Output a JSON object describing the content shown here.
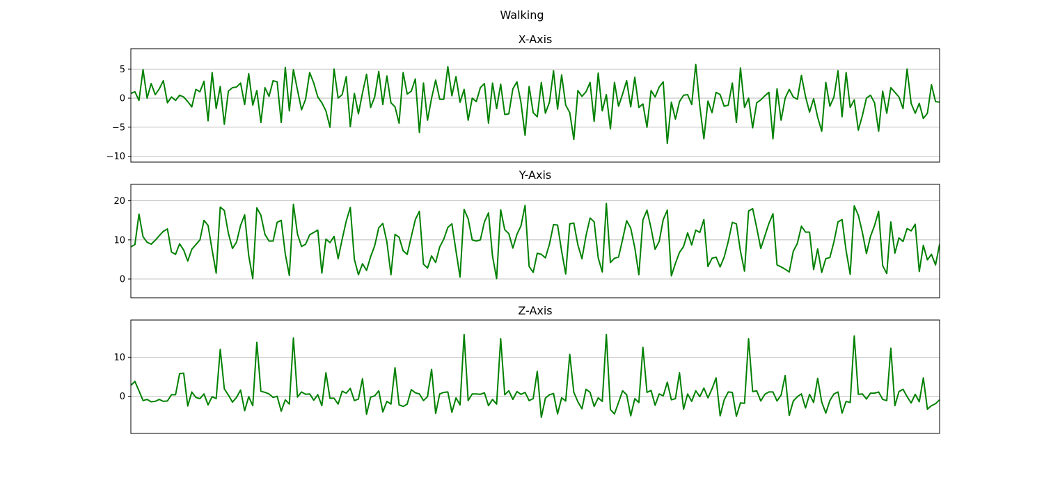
{
  "figure": {
    "title": "Walking"
  },
  "colors": {
    "line": "#008000",
    "grid": "#b0b0b0",
    "frame": "#000000"
  },
  "chart_data": [
    {
      "type": "line",
      "title": "X-Axis",
      "xlabel": "",
      "ylabel": "",
      "grid": "horizontal",
      "x_range": [
        0,
        199
      ],
      "ylim": [
        -11,
        8.5
      ],
      "yticks": [
        -10,
        -5,
        0,
        5
      ],
      "ytick_labels": [
        "−10",
        "−5",
        "0",
        "5"
      ],
      "series": [
        {
          "values": [
            0.8,
            1.1,
            -0.4,
            4.9,
            0.0,
            2.5,
            0.6,
            1.6,
            3.0,
            -0.8,
            0.2,
            -0.4,
            0.5,
            0.2,
            -0.6,
            -1.5,
            1.5,
            1.1,
            2.9,
            -3.9,
            4.4,
            -1.8,
            2.0,
            -4.5,
            1.2,
            1.8,
            1.9,
            2.6,
            -1.1,
            4.2,
            -1.2,
            1.3,
            -4.2,
            1.8,
            0.3,
            3.0,
            2.8,
            -4.2,
            5.3,
            -2.2,
            4.9,
            1.4,
            -2.0,
            -0.2,
            4.4,
            2.6,
            0.2,
            -0.8,
            -2.2,
            -5.0,
            5.0,
            0.0,
            0.6,
            3.7,
            -4.9,
            0.8,
            -2.7,
            0.9,
            4.1,
            -1.6,
            0.2,
            4.6,
            -1.1,
            3.8,
            -0.8,
            -1.5,
            -4.3,
            4.4,
            0.7,
            1.2,
            3.3,
            -5.9,
            2.6,
            -3.8,
            0.0,
            3.1,
            -0.2,
            -0.2,
            5.4,
            0.4,
            3.7,
            -0.7,
            1.5,
            -3.8,
            0.0,
            -0.6,
            1.8,
            2.5,
            -4.3,
            2.6,
            -1.8,
            2.4,
            -2.8,
            -2.7,
            1.6,
            2.8,
            -0.8,
            -6.4,
            2.0,
            -2.5,
            -3.2,
            2.7,
            -2.6,
            -0.7,
            4.7,
            -1.9,
            4.0,
            -1.2,
            -2.5,
            -7.1,
            1.3,
            0.3,
            1.1,
            2.7,
            -4.0,
            4.3,
            -2.2,
            0.6,
            -5.3,
            2.7,
            -1.4,
            0.7,
            3.0,
            -1.5,
            3.6,
            -1.6,
            -1.0,
            -5.0,
            1.3,
            0.2,
            1.9,
            2.8,
            -7.8,
            -0.7,
            -3.6,
            -0.6,
            0.5,
            0.6,
            -1.1,
            5.8,
            -1.4,
            -7.0,
            -0.5,
            -2.5,
            1.0,
            0.6,
            -1.4,
            -1.2,
            2.6,
            -4.2,
            5.2,
            -1.6,
            0.0,
            -5.1,
            -0.8,
            -0.3,
            0.4,
            1.0,
            -7.0,
            1.6,
            -3.8,
            0.0,
            1.5,
            0.2,
            -0.2,
            3.9,
            0.3,
            -2.4,
            -0.1,
            -3.3,
            -5.7,
            2.7,
            -1.4,
            0.2,
            4.7,
            -3.2,
            4.4,
            -1.6,
            -0.3,
            -5.5,
            -3.0,
            0.0,
            0.5,
            -0.8,
            -5.7,
            1.2,
            -2.6,
            1.8,
            1.0,
            0.2,
            -1.8,
            5.0,
            -0.9,
            -2.6,
            -0.9,
            -3.5,
            -2.6,
            2.3,
            -0.6,
            -0.7
          ]
        }
      ]
    },
    {
      "type": "line",
      "title": "Y-Axis",
      "xlabel": "",
      "ylabel": "",
      "grid": "horizontal",
      "x_range": [
        0,
        199
      ],
      "ylim": [
        -4.8,
        24.2
      ],
      "yticks": [
        0,
        10,
        20
      ],
      "ytick_labels": [
        "0",
        "10",
        "20"
      ],
      "series": [
        {
          "values": [
            8.2,
            8.8,
            16.6,
            10.8,
            9.4,
            8.9,
            9.9,
            11.1,
            12.2,
            12.8,
            6.9,
            6.3,
            9.0,
            7.4,
            4.6,
            7.6,
            8.8,
            10.0,
            15.0,
            13.7,
            7.4,
            1.5,
            18.4,
            17.5,
            11.7,
            7.8,
            9.4,
            13.7,
            16.4,
            6.0,
            0.1,
            18.2,
            16.3,
            11.4,
            9.7,
            9.7,
            14.5,
            15.0,
            6.4,
            0.9,
            19.1,
            11.5,
            8.3,
            8.9,
            11.3,
            11.9,
            12.5,
            1.5,
            10.2,
            9.3,
            10.9,
            5.2,
            10.2,
            14.8,
            18.3,
            5.0,
            1.1,
            3.9,
            2.2,
            5.7,
            8.5,
            13.1,
            14.2,
            9.5,
            1.1,
            11.4,
            10.7,
            7.2,
            6.3,
            10.8,
            15.2,
            17.3,
            3.8,
            2.8,
            5.9,
            4.2,
            8.2,
            10.2,
            13.2,
            14.1,
            7.2,
            0.5,
            17.8,
            15.4,
            10.0,
            9.7,
            10.0,
            14.6,
            16.9,
            5.8,
            0.1,
            17.7,
            12.6,
            11.6,
            7.9,
            11.4,
            13.6,
            18.8,
            3.2,
            1.7,
            6.6,
            6.3,
            5.4,
            8.9,
            13.9,
            13.8,
            7.1,
            1.3,
            14.1,
            14.3,
            8.7,
            5.2,
            11.1,
            15.6,
            14.6,
            5.4,
            1.8,
            19.3,
            4.2,
            5.3,
            5.6,
            10.1,
            14.9,
            13.0,
            8.0,
            1.1,
            15.1,
            17.6,
            13.0,
            7.6,
            9.6,
            15.2,
            17.6,
            0.8,
            4.0,
            6.8,
            8.3,
            11.8,
            8.7,
            12.5,
            11.9,
            15.2,
            3.2,
            5.3,
            5.6,
            3.1,
            5.6,
            9.6,
            14.5,
            14.1,
            7.1,
            2.0,
            17.4,
            18.0,
            13.1,
            7.8,
            11.0,
            14.2,
            16.7,
            3.6,
            3.1,
            2.5,
            1.8,
            7.1,
            9.1,
            13.5,
            12.0,
            12.0,
            2.4,
            7.7,
            1.7,
            5.2,
            5.5,
            9.5,
            14.6,
            15.2,
            7.2,
            1.2,
            18.7,
            16.3,
            11.9,
            6.5,
            10.9,
            13.7,
            17.3,
            3.4,
            1.4,
            14.6,
            6.6,
            10.5,
            9.6,
            12.9,
            12.3,
            14.0,
            1.9,
            8.6,
            4.9,
            6.3,
            3.6,
            8.9
          ]
        }
      ]
    },
    {
      "type": "line",
      "title": "Z-Axis",
      "xlabel": "",
      "ylabel": "",
      "grid": "horizontal",
      "x_range": [
        0,
        199
      ],
      "ylim": [
        -9.5,
        19.5
      ],
      "yticks": [
        0,
        10
      ],
      "ytick_labels": [
        "0",
        "10"
      ],
      "series": [
        {
          "values": [
            2.8,
            3.8,
            1.4,
            -1.1,
            -0.8,
            -1.4,
            -1.3,
            -0.8,
            -1.3,
            -1.2,
            0.4,
            0.4,
            5.8,
            5.9,
            -2.5,
            1.1,
            -0.3,
            -0.6,
            0.6,
            -2.2,
            -0.1,
            -0.6,
            12.0,
            1.9,
            0.3,
            -1.5,
            -0.3,
            1.6,
            -3.7,
            -0.1,
            -2.4,
            13.8,
            1.3,
            1.0,
            0.6,
            -0.3,
            0.0,
            -3.8,
            -0.9,
            -2.0,
            14.9,
            -0.2,
            1.1,
            0.5,
            0.6,
            -1.0,
            0.4,
            -2.4,
            6.0,
            -0.5,
            -0.5,
            -2.0,
            1.3,
            0.8,
            2.0,
            -1.1,
            -0.7,
            4.5,
            -4.6,
            -0.2,
            0.1,
            1.4,
            -4.0,
            -1.3,
            -2.0,
            7.3,
            -2.2,
            -2.6,
            -2.0,
            1.7,
            0.9,
            0.6,
            -1.1,
            -0.1,
            6.9,
            -4.4,
            0.6,
            1.0,
            1.1,
            -4.1,
            -0.4,
            -2.2,
            15.8,
            -1.1,
            0.6,
            0.6,
            0.5,
            0.9,
            -2.4,
            -0.8,
            -2.0,
            14.7,
            0.4,
            1.4,
            -0.8,
            1.2,
            0.5,
            1.0,
            -1.1,
            -0.6,
            6.4,
            -5.4,
            -0.5,
            0.4,
            0.7,
            -4.5,
            -0.4,
            -1.2,
            10.7,
            1.0,
            -1.4,
            -3.2,
            1.8,
            1.0,
            -2.6,
            -0.4,
            -1.3,
            15.8,
            -3.4,
            -4.5,
            -1.6,
            1.4,
            0.4,
            -5.0,
            -0.6,
            -1.6,
            12.5,
            1.0,
            1.5,
            -2.3,
            0.6,
            0.1,
            3.6,
            -0.9,
            -0.6,
            6.0,
            -3.3,
            0.6,
            -1.3,
            1.4,
            -0.1,
            2.1,
            -0.4,
            1.9,
            4.7,
            -5.0,
            -0.9,
            1.1,
            1.0,
            -5.1,
            -1.7,
            -1.8,
            14.7,
            1.2,
            1.4,
            -1.2,
            0.5,
            1.1,
            1.1,
            -1.2,
            0.3,
            5.3,
            -4.9,
            -1.2,
            -0.1,
            0.6,
            -3.0,
            0.5,
            -1.6,
            4.6,
            -1.5,
            -4.3,
            -1.1,
            0.6,
            1.1,
            -4.3,
            -1.3,
            -1.6,
            15.4,
            0.5,
            0.6,
            -0.7,
            0.8,
            0.8,
            1.1,
            -0.8,
            -1.1,
            12.3,
            -2.4,
            1.2,
            1.8,
            -0.1,
            -1.7,
            0.5,
            -1.4,
            4.7,
            -3.3,
            -2.4,
            -1.9,
            -0.9
          ]
        }
      ]
    }
  ]
}
